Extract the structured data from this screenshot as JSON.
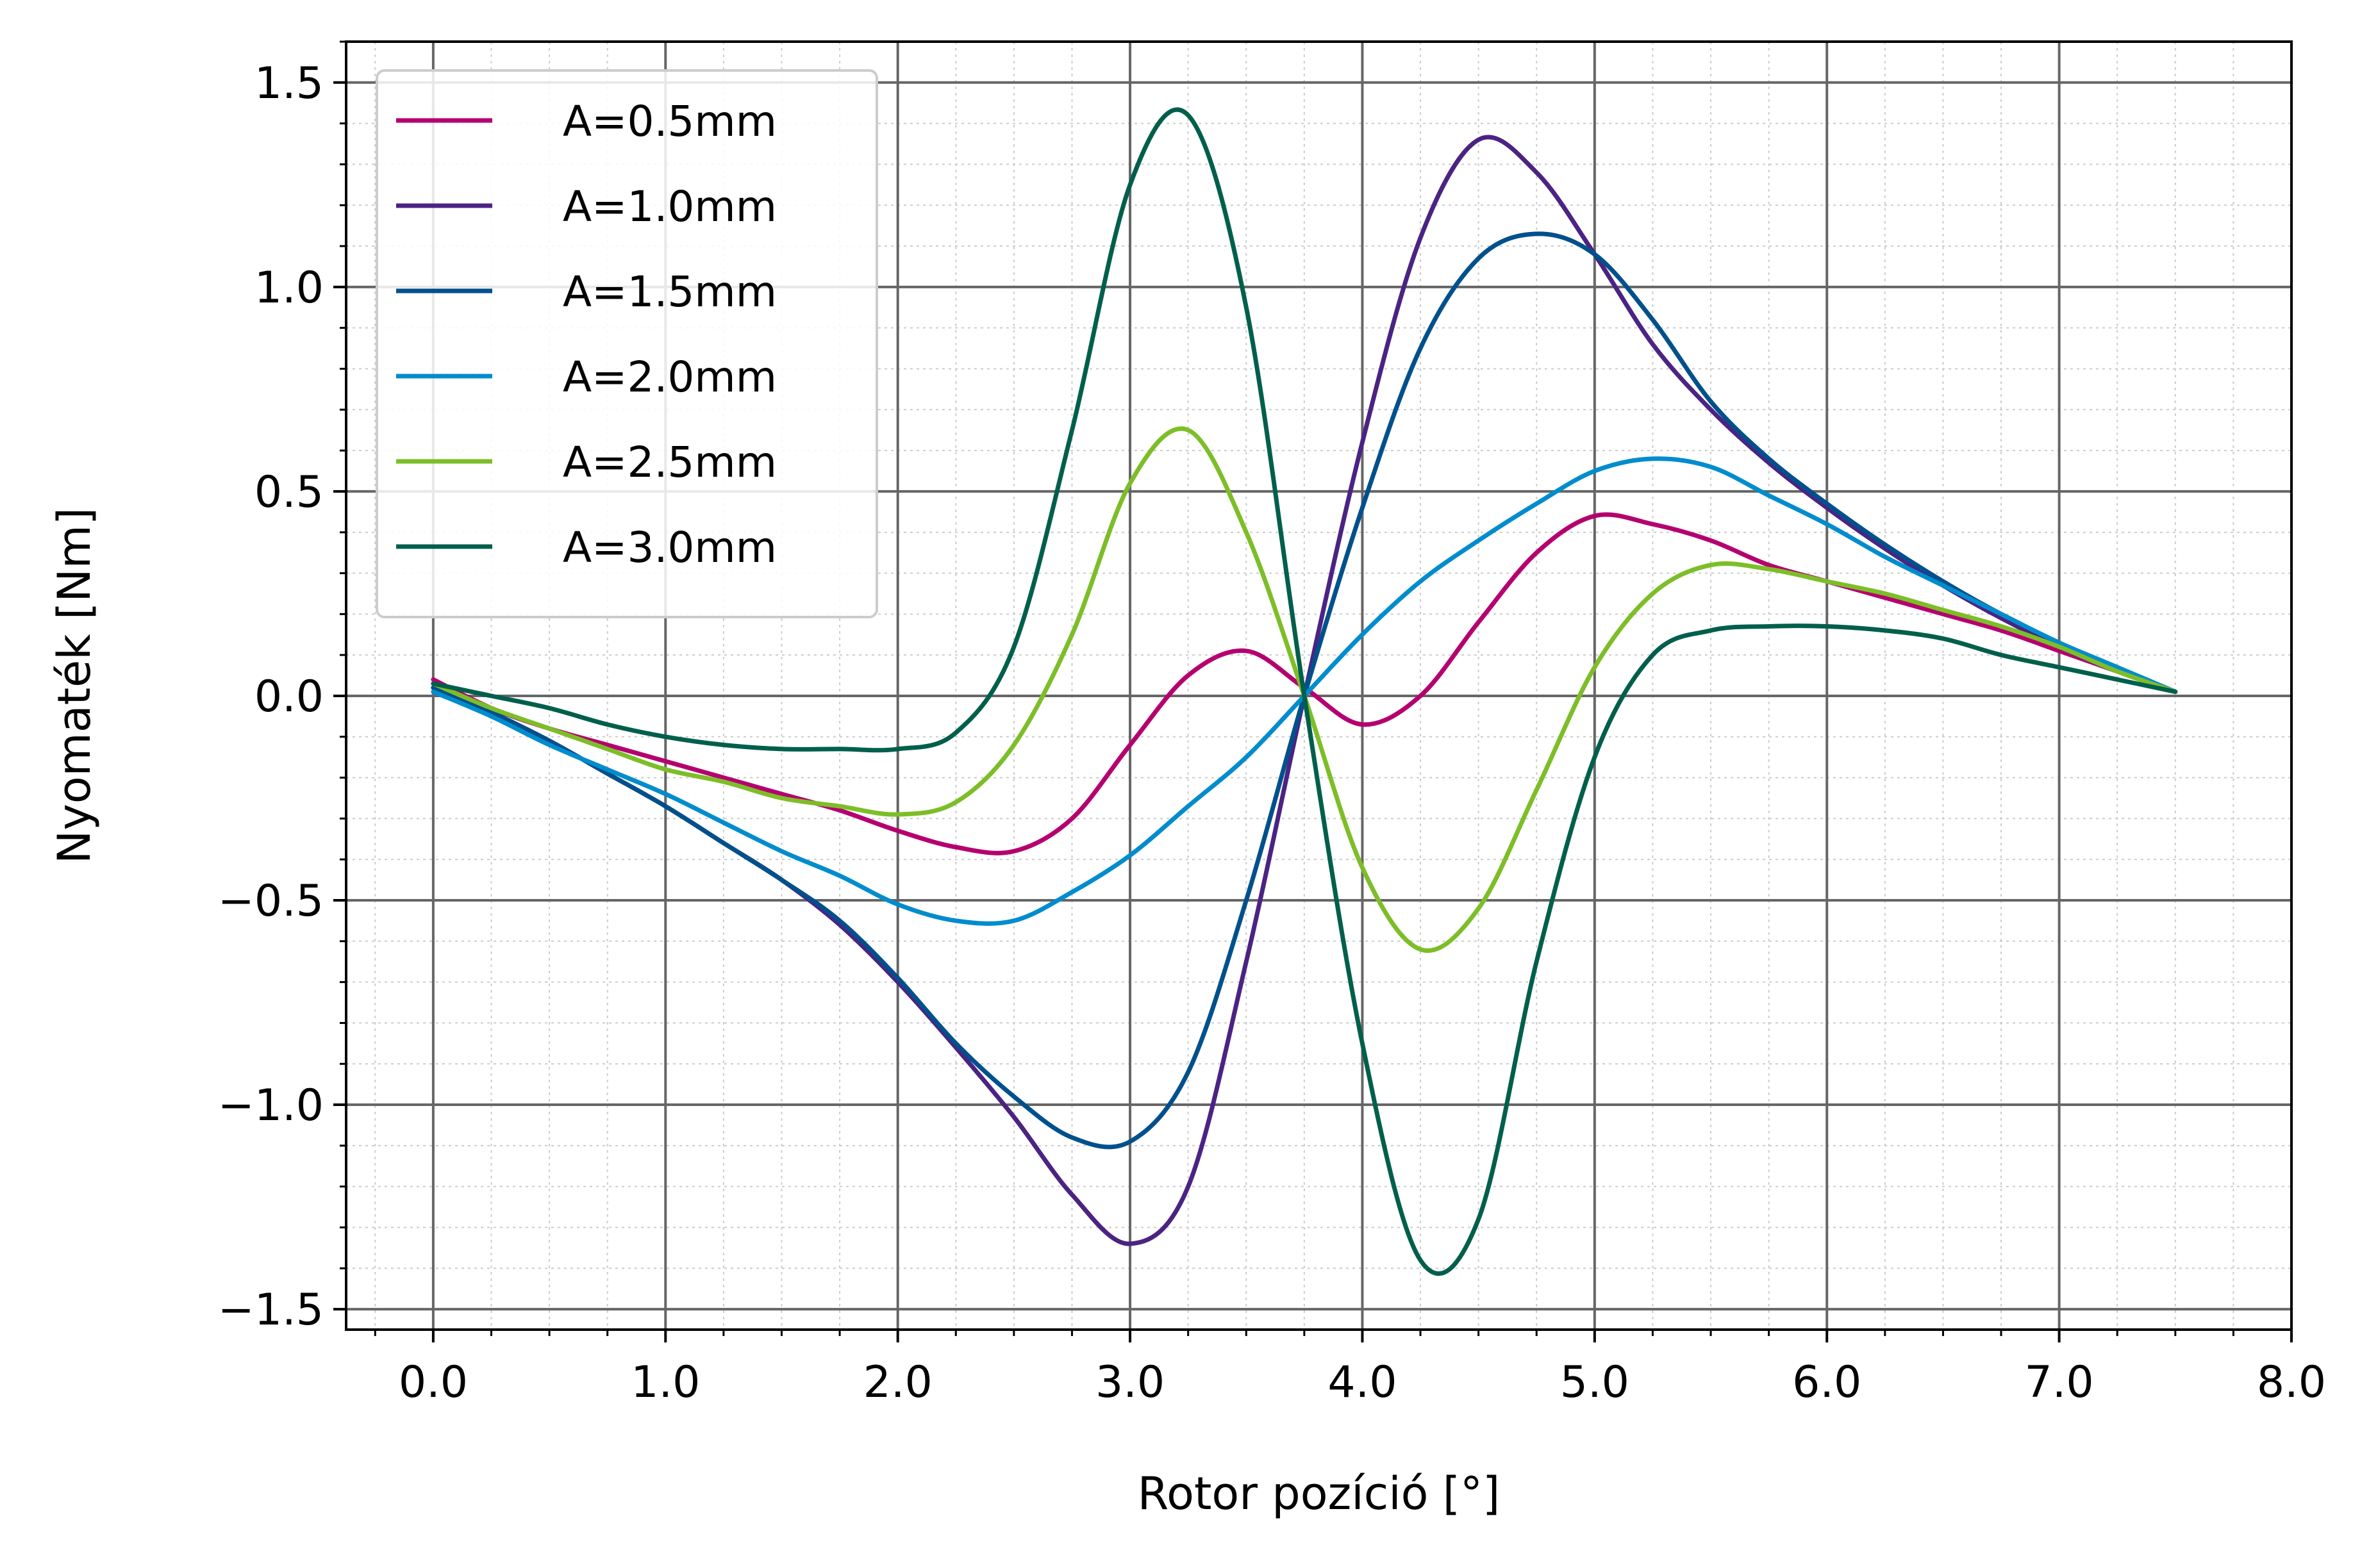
{
  "chart_data": {
    "type": "line",
    "title": "",
    "xlabel": "Rotor pozíció [°]",
    "ylabel": "Nyomaték [Nm]",
    "xlim": [
      -0.375,
      8.0
    ],
    "ylim": [
      -1.55,
      1.6
    ],
    "xticks": [
      0.0,
      1.0,
      2.0,
      3.0,
      4.0,
      5.0,
      6.0,
      7.0,
      8.0
    ],
    "xtick_labels": [
      "0.0",
      "1.0",
      "2.0",
      "3.0",
      "4.0",
      "5.0",
      "6.0",
      "7.0",
      "8.0"
    ],
    "yticks": [
      -1.5,
      -1.0,
      -0.5,
      0.0,
      0.5,
      1.0,
      1.5
    ],
    "ytick_labels": [
      "−1.5",
      "−1.0",
      "−0.5",
      "0.0",
      "0.5",
      "1.0",
      "1.5"
    ],
    "grid": true,
    "minor_grid": true,
    "legend_position": "top-left",
    "x": [
      0.0,
      0.25,
      0.5,
      0.75,
      1.0,
      1.25,
      1.5,
      1.75,
      2.0,
      2.25,
      2.5,
      2.75,
      3.0,
      3.25,
      3.5,
      3.75,
      4.0,
      4.25,
      4.5,
      4.75,
      5.0,
      5.25,
      5.5,
      5.75,
      6.0,
      6.25,
      6.5,
      6.75,
      7.0,
      7.25,
      7.5
    ],
    "series": [
      {
        "name": "A=0.5mm",
        "color": "#b5006f",
        "values": [
          0.04,
          -0.03,
          -0.08,
          -0.12,
          -0.16,
          -0.2,
          -0.24,
          -0.28,
          -0.33,
          -0.37,
          -0.38,
          -0.3,
          -0.12,
          0.05,
          0.11,
          0.02,
          -0.07,
          0.0,
          0.18,
          0.35,
          0.44,
          0.42,
          0.38,
          0.32,
          0.28,
          0.24,
          0.2,
          0.16,
          0.11,
          0.06,
          0.01
        ]
      },
      {
        "name": "A=1.0mm",
        "color": "#4b2383",
        "values": [
          0.02,
          -0.04,
          -0.11,
          -0.19,
          -0.27,
          -0.36,
          -0.45,
          -0.56,
          -0.7,
          -0.86,
          -1.03,
          -1.22,
          -1.34,
          -1.2,
          -0.65,
          0.0,
          0.62,
          1.12,
          1.36,
          1.28,
          1.08,
          0.86,
          0.7,
          0.57,
          0.46,
          0.36,
          0.27,
          0.19,
          0.12,
          0.06,
          0.01
        ]
      },
      {
        "name": "A=1.5mm",
        "color": "#00508c",
        "values": [
          0.02,
          -0.04,
          -0.11,
          -0.19,
          -0.27,
          -0.36,
          -0.45,
          -0.55,
          -0.69,
          -0.85,
          -0.98,
          -1.08,
          -1.09,
          -0.92,
          -0.5,
          0.0,
          0.46,
          0.85,
          1.07,
          1.13,
          1.08,
          0.92,
          0.72,
          0.58,
          0.47,
          0.37,
          0.28,
          0.2,
          0.13,
          0.07,
          0.01
        ]
      },
      {
        "name": "A=2.0mm",
        "color": "#008ccd",
        "values": [
          0.01,
          -0.05,
          -0.12,
          -0.18,
          -0.24,
          -0.31,
          -0.38,
          -0.44,
          -0.51,
          -0.55,
          -0.55,
          -0.48,
          -0.39,
          -0.27,
          -0.15,
          0.0,
          0.15,
          0.28,
          0.38,
          0.47,
          0.55,
          0.58,
          0.56,
          0.49,
          0.42,
          0.34,
          0.27,
          0.2,
          0.13,
          0.07,
          0.01
        ]
      },
      {
        "name": "A=2.5mm",
        "color": "#7dbe28",
        "values": [
          0.03,
          -0.03,
          -0.08,
          -0.13,
          -0.18,
          -0.21,
          -0.25,
          -0.27,
          -0.29,
          -0.26,
          -0.12,
          0.15,
          0.52,
          0.65,
          0.4,
          0.0,
          -0.42,
          -0.62,
          -0.52,
          -0.23,
          0.07,
          0.25,
          0.32,
          0.31,
          0.28,
          0.25,
          0.21,
          0.17,
          0.12,
          0.06,
          0.01
        ]
      },
      {
        "name": "A=3.0mm",
        "color": "#005f4b",
        "values": [
          0.03,
          0.0,
          -0.03,
          -0.07,
          -0.1,
          -0.12,
          -0.13,
          -0.13,
          -0.13,
          -0.09,
          0.12,
          0.65,
          1.25,
          1.42,
          0.95,
          0.0,
          -0.85,
          -1.38,
          -1.28,
          -0.65,
          -0.15,
          0.1,
          0.16,
          0.17,
          0.17,
          0.16,
          0.14,
          0.1,
          0.07,
          0.04,
          0.01
        ]
      }
    ]
  }
}
